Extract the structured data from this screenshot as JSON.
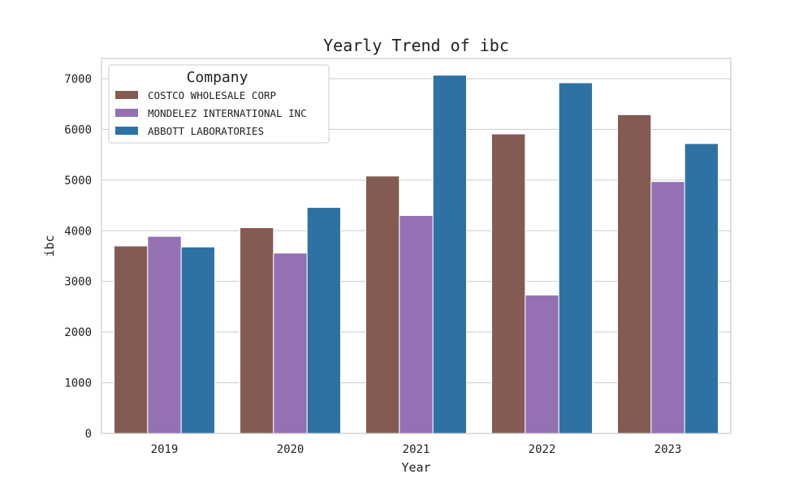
{
  "chart_data": {
    "type": "bar",
    "title": "Yearly Trend of ibc",
    "xlabel": "Year",
    "ylabel": "ibc",
    "categories": [
      "2019",
      "2020",
      "2021",
      "2022",
      "2023"
    ],
    "ylim": [
      0,
      7400
    ],
    "yticks": [
      0,
      1000,
      2000,
      3000,
      4000,
      5000,
      6000,
      7000
    ],
    "grid": "horizontal",
    "legend": {
      "title": "Company",
      "position": "top-left"
    },
    "series": [
      {
        "name": "COSTCO WHOLESALE CORP",
        "color": "#845b52",
        "values": [
          3700,
          4060,
          5080,
          5910,
          6290
        ]
      },
      {
        "name": "MONDELEZ INTERNATIONAL INC",
        "color": "#9371b2",
        "values": [
          3890,
          3560,
          4300,
          2730,
          4970
        ]
      },
      {
        "name": "ABBOTT LABORATORIES",
        "color": "#2e72a4",
        "values": [
          3680,
          4460,
          7070,
          6920,
          5720
        ]
      }
    ]
  }
}
